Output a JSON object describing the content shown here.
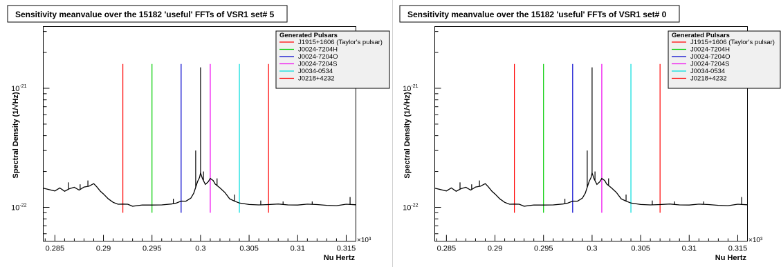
{
  "chart_data": [
    {
      "type": "line",
      "title": "Sensitivity meanvalue over the 15182 'useful' FFTs of VSR1  set# 5",
      "xlabel": "Nu Hertz",
      "ylabel": "Spectral Density  (1/√Hz)",
      "x_exponent_label": "×10³",
      "x_scale_power": 3,
      "xlim": [
        0.2838,
        0.316
      ],
      "x_ticks": [
        0.285,
        0.29,
        0.295,
        0.3,
        0.305,
        0.31,
        0.315
      ],
      "x_tick_labels": [
        "0.285",
        "0.29",
        "0.295",
        "0.3",
        "0.305",
        "0.31",
        "0.315"
      ],
      "yscale": "log",
      "ylim": [
        5.2e-23,
        3.3e-21
      ],
      "y_tick_labels": [
        {
          "value": 1e-21,
          "base": "10",
          "exp": "-21"
        },
        {
          "value": 1e-22,
          "base": "10",
          "exp": "-22"
        }
      ],
      "legend": {
        "title": "Generated Pulsars",
        "placement": "top-right",
        "entries": [
          {
            "name": "J1915+1606 (Taylor's pulsar)",
            "color": "#ff0000",
            "x": 0.292
          },
          {
            "name": "J0024-7204H",
            "color": "#00cc00",
            "x": 0.295
          },
          {
            "name": "J0024-7204O",
            "color": "#0000cc",
            "x": 0.298
          },
          {
            "name": "J0024-7204S",
            "color": "#ee00ee",
            "x": 0.301
          },
          {
            "name": "J0034-0534",
            "color": "#00dddd",
            "x": 0.304
          },
          {
            "name": "J0218+4232",
            "color": "#ff0000",
            "x": 0.307
          }
        ]
      },
      "pulsar_line_top": 1.6e-21,
      "spectrum": {
        "name": "mean sensitivity",
        "color": "#000000",
        "x": [
          0.2838,
          0.2845,
          0.285,
          0.2855,
          0.286,
          0.2865,
          0.287,
          0.2875,
          0.288,
          0.2885,
          0.289,
          0.2893,
          0.2897,
          0.29,
          0.2905,
          0.291,
          0.2915,
          0.292,
          0.2925,
          0.293,
          0.294,
          0.295,
          0.296,
          0.297,
          0.2975,
          0.298,
          0.2985,
          0.299,
          0.2993,
          0.2995,
          0.2997,
          0.2999,
          0.3,
          0.3002,
          0.3005,
          0.3008,
          0.301,
          0.3013,
          0.3015,
          0.302,
          0.3025,
          0.303,
          0.3035,
          0.304,
          0.305,
          0.306,
          0.307,
          0.308,
          0.309,
          0.31,
          0.311,
          0.312,
          0.313,
          0.314,
          0.315,
          0.316
        ],
        "y": [
          1.45e-22,
          1.41e-22,
          1.38e-22,
          1.43e-22,
          1.38e-22,
          1.44e-22,
          1.46e-22,
          1.4e-22,
          1.48e-22,
          1.52e-22,
          1.56e-22,
          1.49e-22,
          1.38e-22,
          1.28e-22,
          1.18e-22,
          1.1e-22,
          1.07e-22,
          1.06e-22,
          1.05e-22,
          1.04e-22,
          1.04e-22,
          1.04e-22,
          1.05e-22,
          1.07e-22,
          1.09e-22,
          1.11e-22,
          1.14e-22,
          1.2e-22,
          1.3e-22,
          1.48e-22,
          1.65e-22,
          1.8e-22,
          1.92e-22,
          1.74e-22,
          1.58e-22,
          1.62e-22,
          1.75e-22,
          1.68e-22,
          1.58e-22,
          1.45e-22,
          1.32e-22,
          1.2e-22,
          1.12e-22,
          1.08e-22,
          1.06e-22,
          1.05e-22,
          1.06e-22,
          1.05e-22,
          1.06e-22,
          1.05e-22,
          1.05e-22,
          1.06e-22,
          1.04e-22,
          1.04e-22,
          1.05e-22,
          1.05e-22
        ],
        "spikes": [
          {
            "x": 0.2864,
            "y": 1.62e-22
          },
          {
            "x": 0.2876,
            "y": 1.56e-22
          },
          {
            "x": 0.2884,
            "y": 1.68e-22
          },
          {
            "x": 0.2972,
            "y": 1.18e-22
          },
          {
            "x": 0.2995,
            "y": 3e-22
          },
          {
            "x": 0.3,
            "y": 1.5e-21
          },
          {
            "x": 0.3003,
            "y": 2e-22
          },
          {
            "x": 0.3017,
            "y": 1.75e-22
          },
          {
            "x": 0.3035,
            "y": 1.28e-22
          },
          {
            "x": 0.3062,
            "y": 1.14e-22
          },
          {
            "x": 0.3085,
            "y": 1.12e-22
          },
          {
            "x": 0.3115,
            "y": 1.12e-22
          },
          {
            "x": 0.3154,
            "y": 1.22e-22
          }
        ]
      }
    },
    {
      "type": "line",
      "title": "Sensitivity meanvalue over the 15182 'useful' FFTs of VSR1  set# 0",
      "xlabel": "Nu Hertz",
      "ylabel": "Spectral Density  (1/√Hz)",
      "x_exponent_label": "×10³",
      "x_scale_power": 3,
      "xlim": [
        0.2838,
        0.316
      ],
      "x_ticks": [
        0.285,
        0.29,
        0.295,
        0.3,
        0.305,
        0.31,
        0.315
      ],
      "x_tick_labels": [
        "0.285",
        "0.29",
        "0.295",
        "0.3",
        "0.305",
        "0.31",
        "0.315"
      ],
      "yscale": "log",
      "ylim": [
        5.2e-23,
        3.3e-21
      ],
      "y_tick_labels": [
        {
          "value": 1e-21,
          "base": "10",
          "exp": "-21"
        },
        {
          "value": 1e-22,
          "base": "10",
          "exp": "-22"
        }
      ],
      "legend": {
        "title": "Generated Pulsars",
        "placement": "top-right",
        "entries": [
          {
            "name": "J1915+1606 (Taylor's pulsar)",
            "color": "#ff0000",
            "x": 0.292
          },
          {
            "name": "J0024-7204H",
            "color": "#00cc00",
            "x": 0.295
          },
          {
            "name": "J0024-7204O",
            "color": "#0000cc",
            "x": 0.298
          },
          {
            "name": "J0024-7204S",
            "color": "#ee00ee",
            "x": 0.301
          },
          {
            "name": "J0034-0534",
            "color": "#00dddd",
            "x": 0.304
          },
          {
            "name": "J0218+4232",
            "color": "#ff0000",
            "x": 0.307
          }
        ]
      },
      "pulsar_line_top": 1.6e-21,
      "spectrum": {
        "name": "mean sensitivity",
        "color": "#000000",
        "x": [
          0.2838,
          0.2845,
          0.285,
          0.2855,
          0.286,
          0.2865,
          0.287,
          0.2875,
          0.288,
          0.2885,
          0.289,
          0.2893,
          0.2897,
          0.29,
          0.2905,
          0.291,
          0.2915,
          0.292,
          0.2925,
          0.293,
          0.294,
          0.295,
          0.296,
          0.297,
          0.2975,
          0.298,
          0.2985,
          0.299,
          0.2993,
          0.2995,
          0.2997,
          0.2999,
          0.3,
          0.3002,
          0.3005,
          0.3008,
          0.301,
          0.3013,
          0.3015,
          0.302,
          0.3025,
          0.303,
          0.3035,
          0.304,
          0.305,
          0.306,
          0.307,
          0.308,
          0.309,
          0.31,
          0.311,
          0.312,
          0.313,
          0.314,
          0.315,
          0.316
        ],
        "y": [
          1.45e-22,
          1.41e-22,
          1.38e-22,
          1.43e-22,
          1.38e-22,
          1.44e-22,
          1.46e-22,
          1.4e-22,
          1.48e-22,
          1.52e-22,
          1.56e-22,
          1.49e-22,
          1.38e-22,
          1.28e-22,
          1.18e-22,
          1.1e-22,
          1.07e-22,
          1.06e-22,
          1.05e-22,
          1.04e-22,
          1.04e-22,
          1.04e-22,
          1.05e-22,
          1.07e-22,
          1.09e-22,
          1.11e-22,
          1.14e-22,
          1.2e-22,
          1.3e-22,
          1.48e-22,
          1.65e-22,
          1.8e-22,
          1.92e-22,
          1.74e-22,
          1.58e-22,
          1.62e-22,
          1.75e-22,
          1.68e-22,
          1.58e-22,
          1.45e-22,
          1.32e-22,
          1.2e-22,
          1.12e-22,
          1.08e-22,
          1.06e-22,
          1.05e-22,
          1.06e-22,
          1.05e-22,
          1.06e-22,
          1.05e-22,
          1.05e-22,
          1.06e-22,
          1.04e-22,
          1.04e-22,
          1.05e-22,
          1.05e-22
        ],
        "spikes": [
          {
            "x": 0.2864,
            "y": 1.62e-22
          },
          {
            "x": 0.2876,
            "y": 1.56e-22
          },
          {
            "x": 0.2884,
            "y": 1.68e-22
          },
          {
            "x": 0.2972,
            "y": 1.18e-22
          },
          {
            "x": 0.2995,
            "y": 3e-22
          },
          {
            "x": 0.3,
            "y": 1.5e-21
          },
          {
            "x": 0.3003,
            "y": 2e-22
          },
          {
            "x": 0.3017,
            "y": 1.75e-22
          },
          {
            "x": 0.3035,
            "y": 1.28e-22
          },
          {
            "x": 0.3062,
            "y": 1.14e-22
          },
          {
            "x": 0.3085,
            "y": 1.12e-22
          },
          {
            "x": 0.3115,
            "y": 1.12e-22
          },
          {
            "x": 0.3154,
            "y": 1.22e-22
          }
        ]
      }
    }
  ]
}
